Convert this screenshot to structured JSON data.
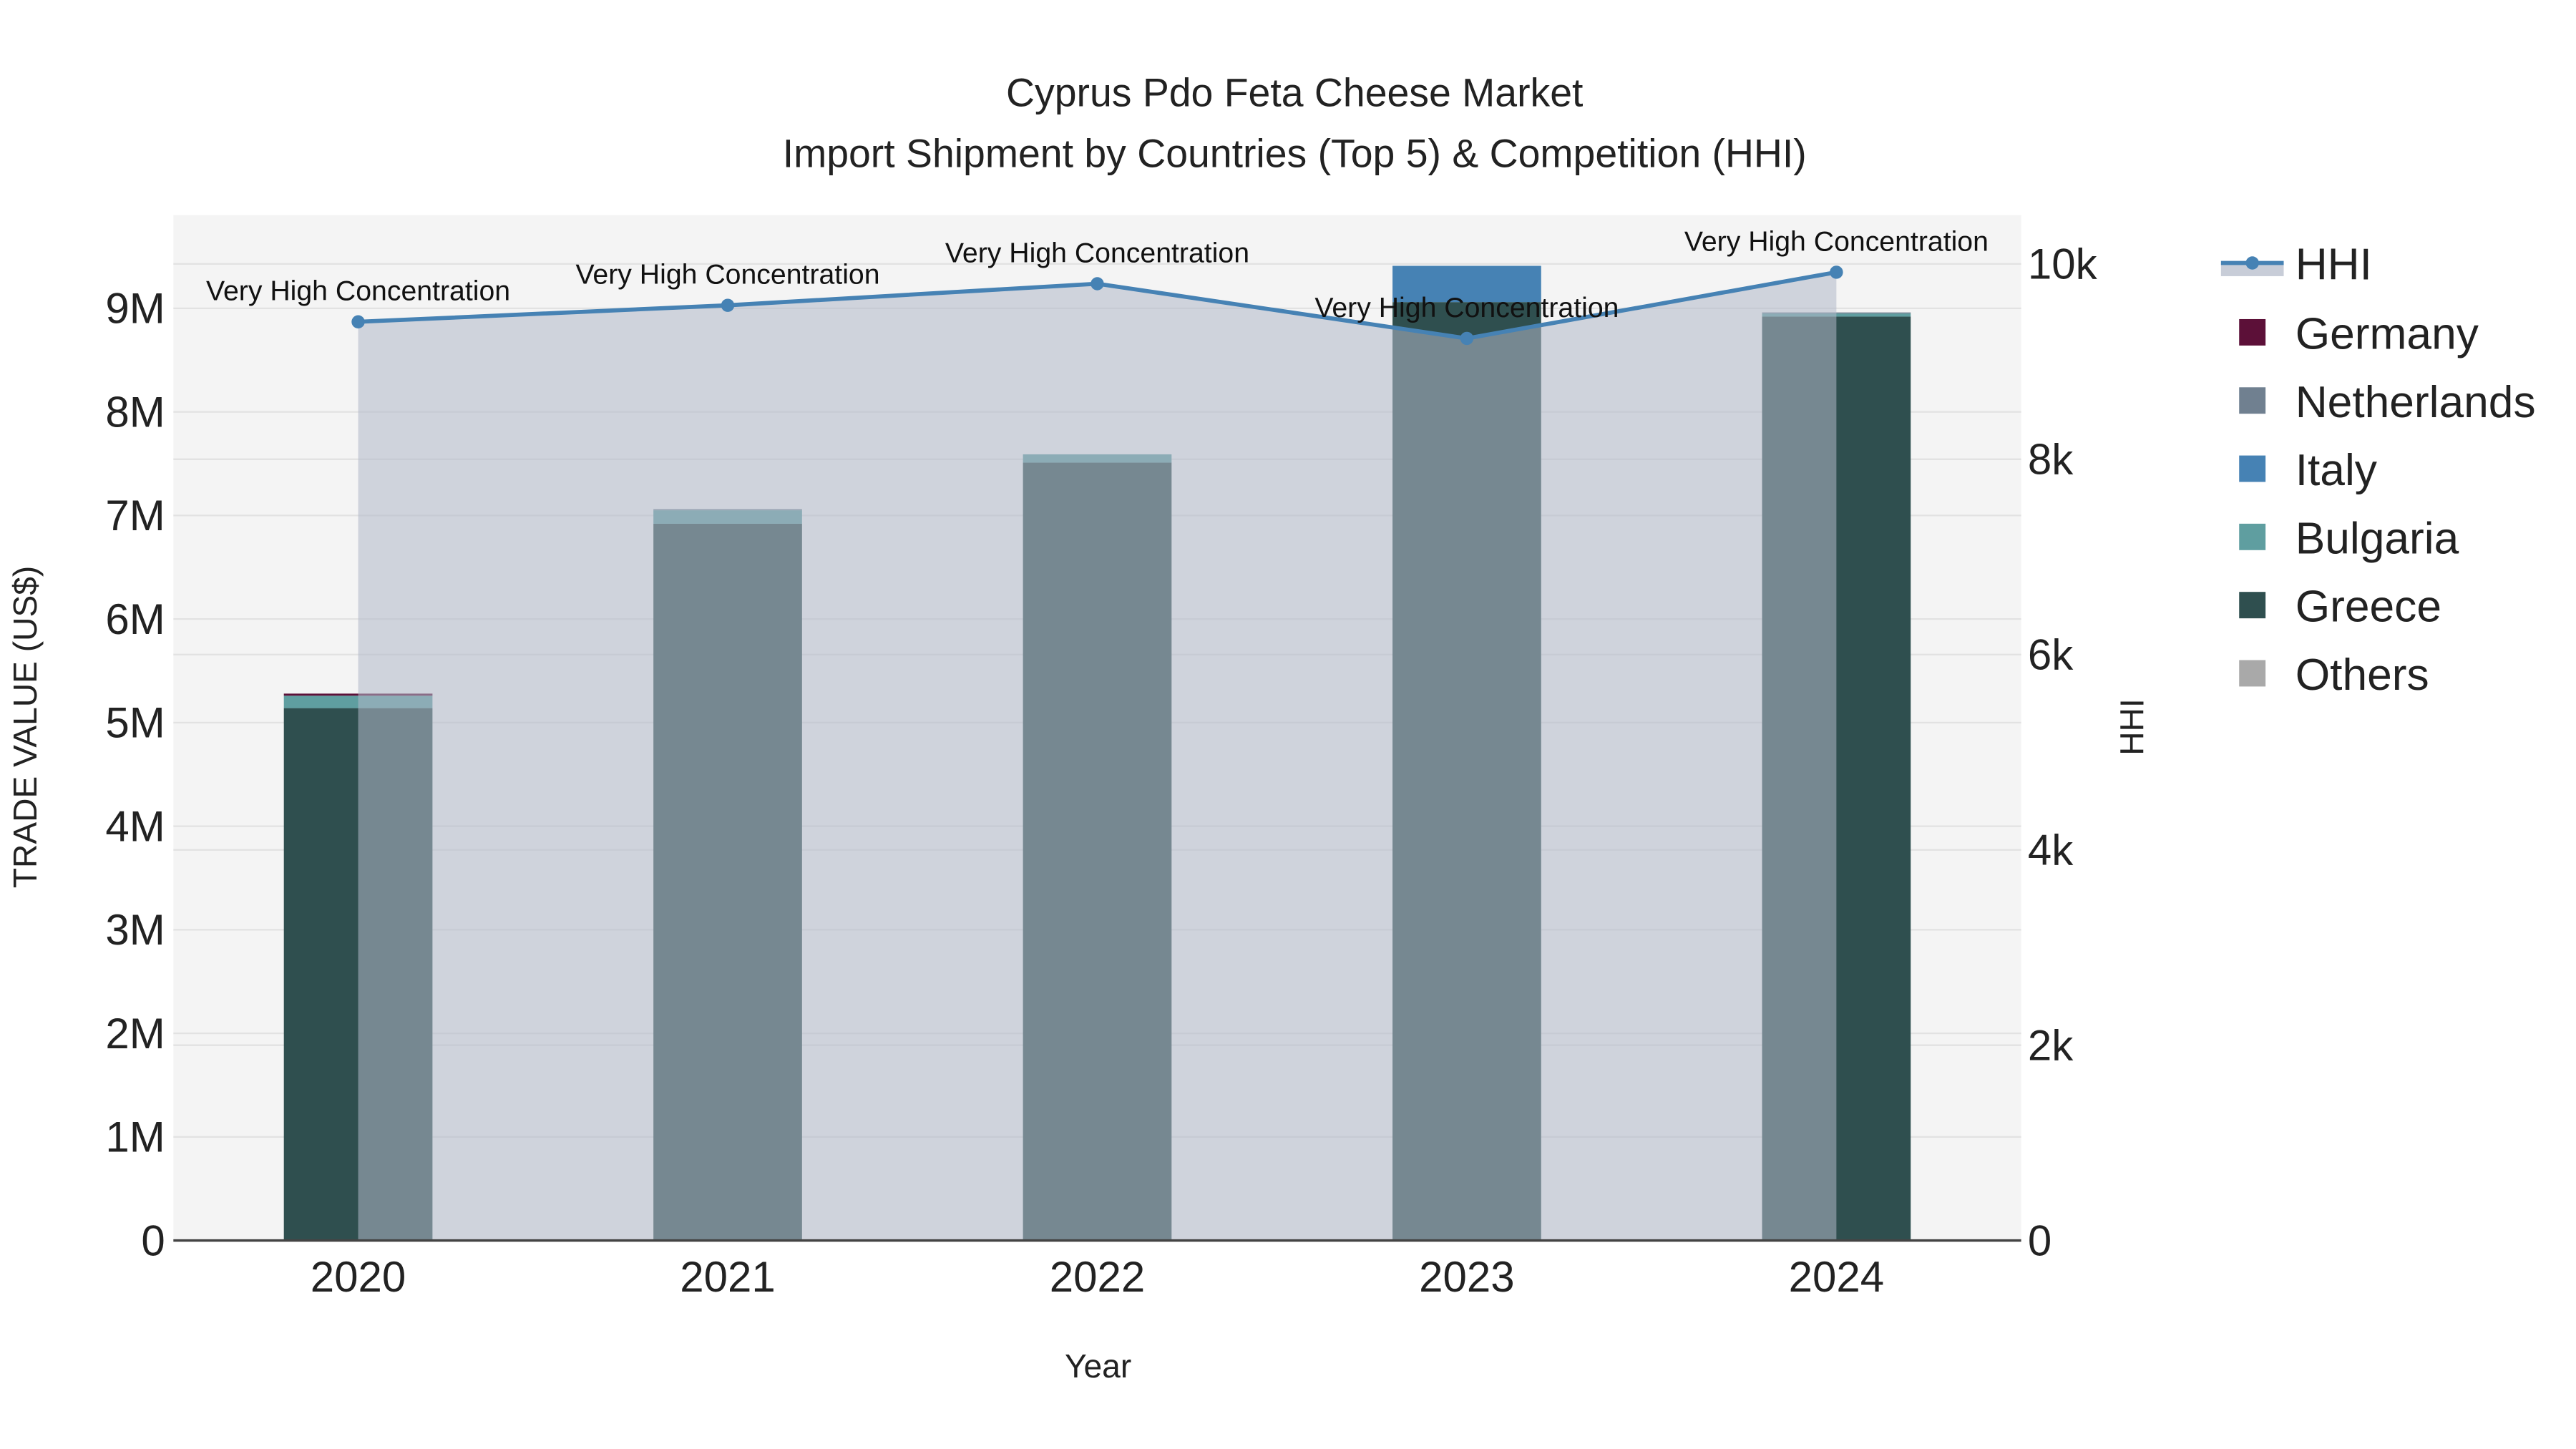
{
  "chart_data": {
    "type": "bar",
    "title": "Cyprus Pdo Feta Cheese Market",
    "subtitle": "Import Shipment by Countries (Top 5) & Competition (HHI)",
    "xlabel": "Year",
    "ylabel": "TRADE VALUE (US$)",
    "y2label": "HHI",
    "categories": [
      "2020",
      "2021",
      "2022",
      "2023",
      "2024"
    ],
    "ylim": [
      0,
      9900000
    ],
    "y2lim": [
      0,
      10500
    ],
    "yticks": [
      {
        "v": 0,
        "label": "0"
      },
      {
        "v": 1000000,
        "label": "1M"
      },
      {
        "v": 2000000,
        "label": "2M"
      },
      {
        "v": 3000000,
        "label": "3M"
      },
      {
        "v": 4000000,
        "label": "4M"
      },
      {
        "v": 5000000,
        "label": "5M"
      },
      {
        "v": 6000000,
        "label": "6M"
      },
      {
        "v": 7000000,
        "label": "7M"
      },
      {
        "v": 8000000,
        "label": "8M"
      },
      {
        "v": 9000000,
        "label": "9M"
      }
    ],
    "y2ticks": [
      {
        "v": 0,
        "label": "0"
      },
      {
        "v": 2000,
        "label": "2k"
      },
      {
        "v": 4000,
        "label": "4k"
      },
      {
        "v": 6000,
        "label": "6k"
      },
      {
        "v": 8000,
        "label": "8k"
      },
      {
        "v": 10000,
        "label": "10k"
      }
    ],
    "series": [
      {
        "name": "Greece",
        "color": "#2f4f4f",
        "values": [
          5140000,
          6920000,
          7510000,
          9060000,
          8920000
        ]
      },
      {
        "name": "Bulgaria",
        "color": "#5f9ea0",
        "values": [
          120000,
          130000,
          80000,
          0,
          30000
        ]
      },
      {
        "name": "Italy",
        "color": "#4682b4",
        "values": [
          0,
          0,
          0,
          350000,
          0
        ]
      },
      {
        "name": "Netherlands",
        "color": "#708090",
        "values": [
          0,
          10000,
          0,
          0,
          10000
        ]
      },
      {
        "name": "Germany",
        "color": "#5c1038",
        "values": [
          20000,
          0,
          0,
          0,
          0
        ]
      },
      {
        "name": "Others",
        "color": "#a9a9a9",
        "values": [
          0,
          0,
          0,
          0,
          0
        ]
      }
    ],
    "hhi": {
      "name": "HHI",
      "color": "#4682b4",
      "values": [
        9407,
        9576,
        9797,
        9237,
        9915
      ],
      "annotations": [
        "Very High Concentration",
        "Very High Concentration",
        "Very High Concentration",
        "Very High Concentration",
        "Very High Concentration"
      ]
    },
    "legend": {
      "placement": "right",
      "order": [
        "HHI",
        "Germany",
        "Netherlands",
        "Italy",
        "Bulgaria",
        "Greece",
        "Others"
      ]
    }
  }
}
